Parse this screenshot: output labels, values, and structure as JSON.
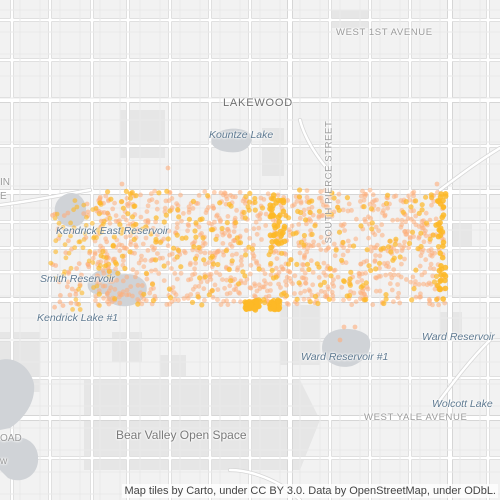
{
  "labels": {
    "lakewood": "LAKEWOOD",
    "kountze_lake": "Kountze Lake",
    "west_1st_avenue": "WEST 1ST AVENUE",
    "south_pierce_street": "SOUTH PIERCE STREET",
    "kendrick_east_reservoir": "Kendrick East Reservoir",
    "smith_reservoir": "Smith Reservoir",
    "kendrick_lake_1": "Kendrick Lake #1",
    "ward_reservoir_1": "Ward Reservoir #1",
    "ward_reservoir": "Ward Reservoir",
    "wolcott_lake": "Wolcott Lake",
    "west_yale_avenue": "WEST YALE AVENUE",
    "bear_valley_open_space": "Bear Valley Open Space",
    "edge_in": "IN",
    "edge_e": "E",
    "edge_oad": "OAD",
    "edge_w": "w"
  },
  "attribution": "Map tiles by Carto, under CC BY 3.0. Data by OpenStreetMap, under ODbL.",
  "colors": {
    "background": "#f2f2f2",
    "road": "#ffffff",
    "road_casing": "#d6d6d6",
    "water": "#d0d3d7",
    "park": "#e6e6e6",
    "points_light": "#fdae7b",
    "points_bright": "#fdb827"
  }
}
